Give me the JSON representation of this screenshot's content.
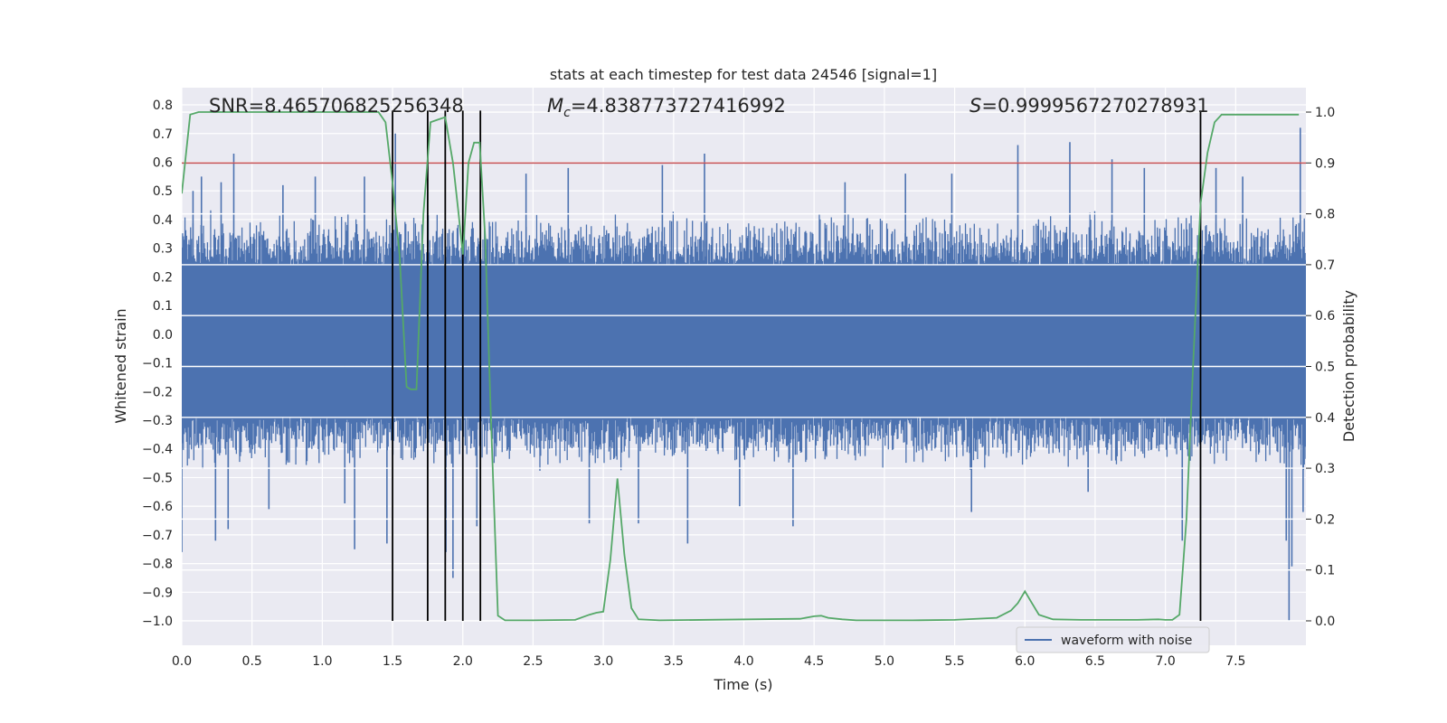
{
  "chart_data": {
    "type": "line",
    "title": "stats at each timestep for test data 24546 [signal=1]",
    "xlabel": "Time (s)",
    "ylabel": "Whitened strain",
    "y2label": "Detection probability",
    "xlim": [
      0.0,
      8.0
    ],
    "ylim": [
      -1.085,
      0.86
    ],
    "y2lim": [
      -0.048,
      1.048
    ],
    "xticks": [
      0.0,
      0.5,
      1.0,
      1.5,
      2.0,
      2.5,
      3.0,
      3.5,
      4.0,
      4.5,
      5.0,
      5.5,
      6.0,
      6.5,
      7.0,
      7.5
    ],
    "xtick_labels": [
      "0.0",
      "0.5",
      "1.0",
      "1.5",
      "2.0",
      "2.5",
      "3.0",
      "3.5",
      "4.0",
      "4.5",
      "5.0",
      "5.5",
      "6.0",
      "6.5",
      "7.0",
      "7.5"
    ],
    "yticks": [
      0.8,
      0.7,
      0.6,
      0.5,
      0.4,
      0.3,
      0.2,
      0.1,
      0.0,
      -0.1,
      -0.2,
      -0.3,
      -0.4,
      -0.5,
      -0.6,
      -0.7,
      -0.8,
      -0.9,
      -1.0
    ],
    "ytick_labels": [
      "0.8",
      "0.7",
      "0.6",
      "0.5",
      "0.4",
      "0.3",
      "0.2",
      "0.1",
      "0.0",
      "−0.1",
      "−0.2",
      "−0.3",
      "−0.4",
      "−0.5",
      "−0.6",
      "−0.7",
      "−0.8",
      "−0.9",
      "−1.0"
    ],
    "y2ticks": [
      1.0,
      0.9,
      0.8,
      0.7,
      0.6,
      0.5,
      0.4,
      0.3,
      0.2,
      0.1,
      0.0
    ],
    "y2tick_labels": [
      "1.0",
      "0.9",
      "0.8",
      "0.7",
      "0.6",
      "0.5",
      "0.4",
      "0.3",
      "0.2",
      "0.1",
      "0.0"
    ],
    "annotations": {
      "snr": "SNR=8.465706825256348",
      "mc_symbol": "M",
      "mc_sub": "c",
      "mc_value": "=4.838773727416992",
      "s_symbol": "S",
      "s_value": "=0.9999567270278931"
    },
    "threshold": {
      "value": 0.9,
      "axis": "y2",
      "color": "#c44e52"
    },
    "vlines": [
      1.5,
      1.75,
      1.875,
      2.0,
      2.125,
      7.25
    ],
    "vlines_range": [
      -1.0,
      0.78
    ],
    "series": [
      {
        "name": "waveform with noise",
        "axis": "y",
        "color": "#4c72b0",
        "envelope_core": [
          -0.29,
          0.24
        ],
        "typical_peak": [
          -0.48,
          0.44
        ],
        "spikes": [
          [
            0.0,
            -0.76
          ],
          [
            0.08,
            0.5
          ],
          [
            0.14,
            0.55
          ],
          [
            0.24,
            -0.72
          ],
          [
            0.28,
            0.53
          ],
          [
            0.33,
            -0.68
          ],
          [
            0.37,
            0.63
          ],
          [
            0.62,
            -0.61
          ],
          [
            0.72,
            0.52
          ],
          [
            0.95,
            0.55
          ],
          [
            1.16,
            -0.59
          ],
          [
            1.23,
            -0.75
          ],
          [
            1.3,
            0.55
          ],
          [
            1.46,
            -0.73
          ],
          [
            1.52,
            0.7
          ],
          [
            1.88,
            -0.76
          ],
          [
            1.93,
            -0.85
          ],
          [
            2.1,
            -0.67
          ],
          [
            2.45,
            0.56
          ],
          [
            2.75,
            0.58
          ],
          [
            2.9,
            -0.66
          ],
          [
            3.25,
            -0.66
          ],
          [
            3.42,
            0.59
          ],
          [
            3.6,
            -0.73
          ],
          [
            3.72,
            0.63
          ],
          [
            3.97,
            -0.6
          ],
          [
            4.35,
            -0.67
          ],
          [
            4.72,
            0.53
          ],
          [
            5.15,
            0.56
          ],
          [
            5.48,
            0.56
          ],
          [
            5.62,
            -0.62
          ],
          [
            5.95,
            0.66
          ],
          [
            6.32,
            0.67
          ],
          [
            6.45,
            -0.55
          ],
          [
            6.62,
            0.61
          ],
          [
            6.85,
            0.58
          ],
          [
            7.12,
            -0.72
          ],
          [
            7.36,
            0.58
          ],
          [
            7.55,
            0.55
          ],
          [
            7.86,
            -0.72
          ],
          [
            7.88,
            -1.0
          ],
          [
            7.9,
            -0.81
          ],
          [
            7.96,
            0.72
          ],
          [
            7.98,
            -0.62
          ]
        ]
      },
      {
        "name": "detection probability",
        "axis": "y2",
        "color": "#55a868",
        "x": [
          0.0,
          0.06,
          0.12,
          1.4,
          1.45,
          1.5,
          1.55,
          1.6,
          1.63,
          1.67,
          1.72,
          1.77,
          1.82,
          1.875,
          1.93,
          1.97,
          2.0,
          2.04,
          2.08,
          2.12,
          2.16,
          2.2,
          2.25,
          2.3,
          2.5,
          2.8,
          2.9,
          2.95,
          3.0,
          3.05,
          3.1,
          3.15,
          3.2,
          3.25,
          3.4,
          4.4,
          4.5,
          4.55,
          4.6,
          4.7,
          4.8,
          5.2,
          5.5,
          5.8,
          5.9,
          5.95,
          6.0,
          6.05,
          6.1,
          6.2,
          6.4,
          6.8,
          6.95,
          7.0,
          7.05,
          7.1,
          7.15,
          7.2,
          7.25,
          7.3,
          7.35,
          7.4,
          7.95
        ],
        "y": [
          0.84,
          0.995,
          1.0,
          1.0,
          0.98,
          0.86,
          0.72,
          0.46,
          0.455,
          0.455,
          0.8,
          0.98,
          0.985,
          0.99,
          0.9,
          0.8,
          0.72,
          0.9,
          0.94,
          0.94,
          0.75,
          0.4,
          0.01,
          0.001,
          0.001,
          0.002,
          0.012,
          0.016,
          0.018,
          0.12,
          0.28,
          0.13,
          0.025,
          0.003,
          0.001,
          0.004,
          0.009,
          0.01,
          0.006,
          0.003,
          0.001,
          0.001,
          0.002,
          0.006,
          0.02,
          0.035,
          0.058,
          0.035,
          0.012,
          0.003,
          0.002,
          0.002,
          0.003,
          0.002,
          0.002,
          0.012,
          0.2,
          0.52,
          0.82,
          0.92,
          0.98,
          0.995,
          0.995
        ]
      }
    ],
    "legend": {
      "label": "waveform with noise",
      "placement": "lower-right"
    }
  }
}
